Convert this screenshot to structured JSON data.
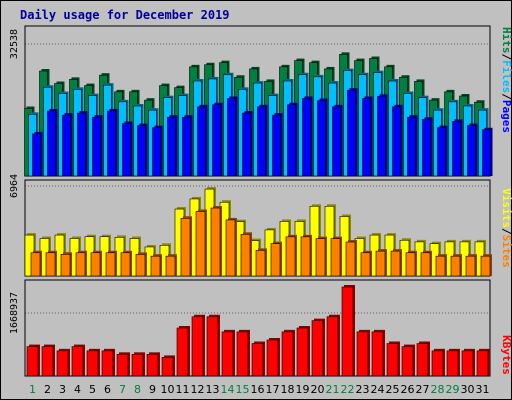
{
  "chart_data": [
    {
      "type": "bar",
      "title": "Daily usage for December 2019",
      "categories": [
        "1",
        "2",
        "3",
        "4",
        "5",
        "6",
        "7",
        "8",
        "9",
        "10",
        "11",
        "12",
        "13",
        "14",
        "15",
        "16",
        "17",
        "18",
        "19",
        "20",
        "21",
        "22",
        "23",
        "24",
        "25",
        "26",
        "27",
        "28",
        "29",
        "30",
        "31"
      ],
      "weekend_days": [
        "1",
        "7",
        "8",
        "14",
        "15",
        "21",
        "22",
        "28",
        "29"
      ],
      "ymax_label": "32538",
      "ymax": 36000,
      "right_label": [
        "Pages",
        "Files",
        "Hits"
      ],
      "series": [
        {
          "name": "Hits",
          "color": "#008040",
          "values": [
            16200,
            25200,
            22200,
            23200,
            21700,
            24200,
            20200,
            20200,
            18200,
            21700,
            21200,
            26200,
            26700,
            27200,
            23700,
            25700,
            22700,
            26200,
            27700,
            27200,
            25700,
            29200,
            27700,
            28200,
            26200,
            23700,
            22700,
            18200,
            20200,
            19200,
            17700
          ]
        },
        {
          "name": "Files",
          "color": "#00bfff",
          "values": [
            14800,
            21300,
            19800,
            20800,
            19300,
            21800,
            17800,
            16800,
            15800,
            18800,
            19300,
            22800,
            23300,
            24300,
            20800,
            22300,
            19300,
            22800,
            24300,
            23800,
            22300,
            25300,
            24300,
            24800,
            22800,
            19800,
            18800,
            15800,
            17800,
            16800,
            15800
          ]
        },
        {
          "name": "Pages",
          "color": "#0000ff",
          "values": [
            10100,
            15600,
            14600,
            15100,
            14100,
            15600,
            12600,
            12100,
            11600,
            14100,
            14100,
            16600,
            17100,
            18600,
            15100,
            16600,
            14600,
            17100,
            18600,
            18100,
            16600,
            20600,
            18600,
            19100,
            16600,
            14100,
            13600,
            11600,
            13100,
            12100,
            11100
          ]
        }
      ]
    },
    {
      "type": "bar",
      "categories": [
        "1",
        "2",
        "3",
        "4",
        "5",
        "6",
        "7",
        "8",
        "9",
        "10",
        "11",
        "12",
        "13",
        "14",
        "15",
        "16",
        "17",
        "18",
        "19",
        "20",
        "21",
        "22",
        "23",
        "24",
        "25",
        "26",
        "27",
        "28",
        "29",
        "30",
        "31"
      ],
      "ymax_label": "6964",
      "ymax": 7600,
      "right_label": [
        "Sites",
        "Visits"
      ],
      "series": [
        {
          "name": "Visits",
          "color": "#ffff00",
          "values": [
            3240,
            2970,
            3240,
            2970,
            3110,
            3110,
            3060,
            2970,
            2300,
            2430,
            5300,
            6100,
            6880,
            5840,
            4300,
            2800,
            3650,
            4320,
            4320,
            5520,
            5520,
            4710,
            2970,
            3240,
            3240,
            2830,
            2700,
            2560,
            2700,
            2700,
            2700
          ]
        },
        {
          "name": "Sites",
          "color": "#ff8000",
          "values": [
            1840,
            1840,
            1720,
            1840,
            1840,
            1840,
            1840,
            1710,
            1570,
            1570,
            4570,
            5110,
            5380,
            4440,
            3300,
            2030,
            2560,
            3100,
            3100,
            2960,
            2960,
            2690,
            1840,
            1970,
            1970,
            1840,
            1840,
            1570,
            1570,
            1570,
            1570
          ]
        }
      ]
    },
    {
      "type": "bar",
      "categories": [
        "1",
        "2",
        "3",
        "4",
        "5",
        "6",
        "7",
        "8",
        "9",
        "10",
        "11",
        "12",
        "13",
        "14",
        "15",
        "16",
        "17",
        "18",
        "19",
        "20",
        "21",
        "22",
        "23",
        "24",
        "25",
        "26",
        "27",
        "28",
        "29",
        "30",
        "31"
      ],
      "ymax_label": "1668937",
      "ymax": 2480000,
      "right_label": [
        "KBytes"
      ],
      "series": [
        {
          "name": "KBytes",
          "color": "#ff0000",
          "values": [
            760000,
            760000,
            650000,
            760000,
            650000,
            650000,
            560000,
            560000,
            560000,
            480000,
            1240000,
            1530000,
            1530000,
            1140000,
            1140000,
            840000,
            930000,
            1140000,
            1240000,
            1430000,
            1530000,
            2300000,
            1140000,
            1140000,
            840000,
            760000,
            840000,
            650000,
            650000,
            650000,
            650000
          ]
        }
      ]
    }
  ]
}
